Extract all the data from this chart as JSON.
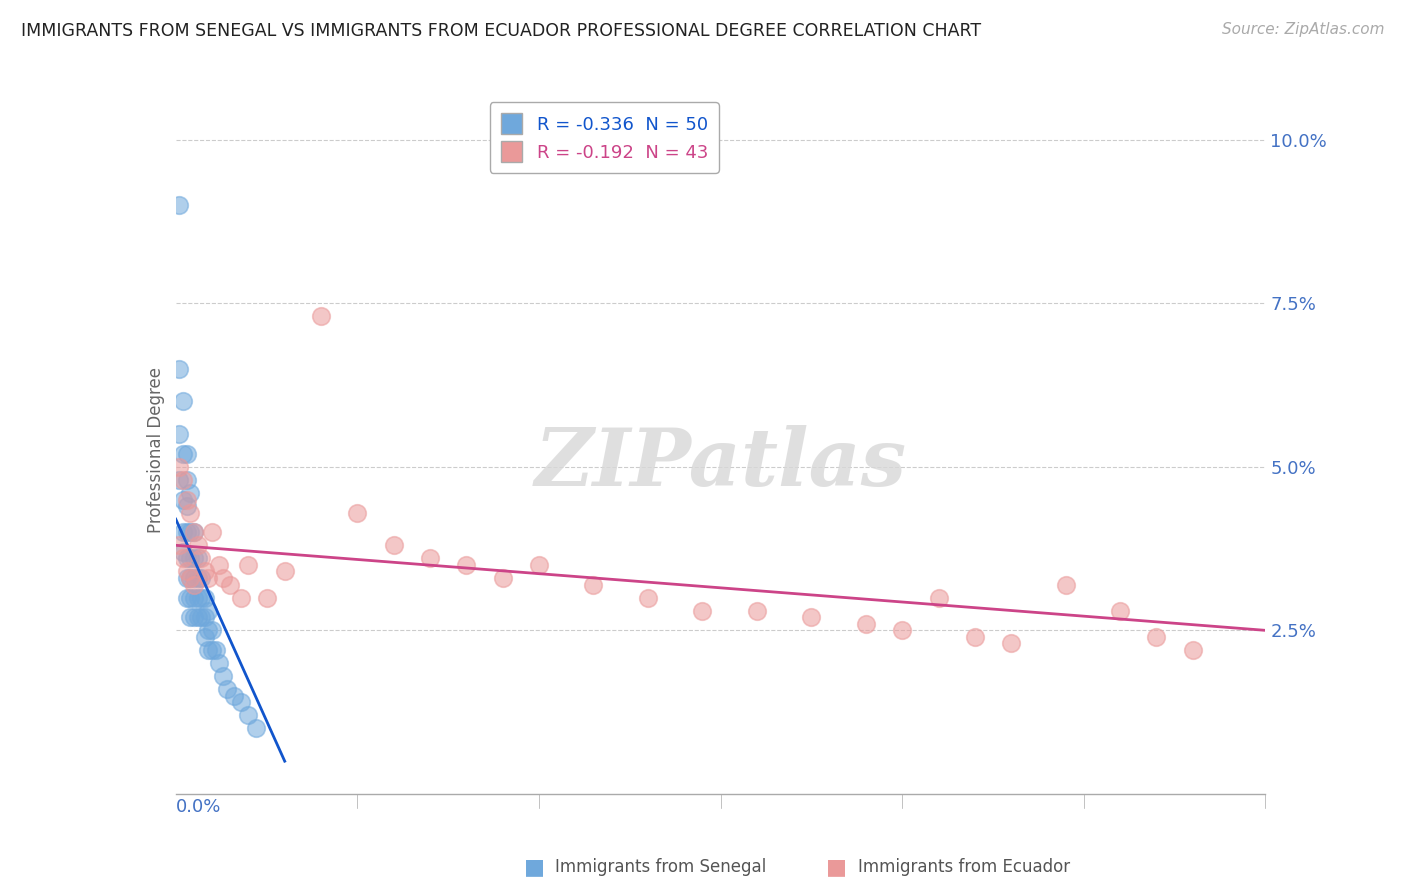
{
  "title": "IMMIGRANTS FROM SENEGAL VS IMMIGRANTS FROM ECUADOR PROFESSIONAL DEGREE CORRELATION CHART",
  "source": "Source: ZipAtlas.com",
  "ylabel": "Professional Degree",
  "xlim": [
    0.0,
    0.3
  ],
  "ylim": [
    0.0,
    0.105
  ],
  "ytick_vals": [
    0.0,
    0.025,
    0.05,
    0.075,
    0.1
  ],
  "ytick_labels": [
    "",
    "2.5%",
    "5.0%",
    "7.5%",
    "10.0%"
  ],
  "senegal_R": -0.336,
  "senegal_N": 50,
  "ecuador_R": -0.192,
  "ecuador_N": 43,
  "senegal_color": "#6fa8dc",
  "ecuador_color": "#ea9999",
  "senegal_line_color": "#1155cc",
  "ecuador_line_color": "#cc4488",
  "senegal_line_x": [
    0.0,
    0.03
  ],
  "senegal_line_y": [
    0.042,
    0.005
  ],
  "ecuador_line_x": [
    0.0,
    0.3
  ],
  "ecuador_line_y": [
    0.038,
    0.025
  ],
  "background_color": "#ffffff",
  "watermark_text": "ZIPatlas",
  "senegal_x": [
    0.001,
    0.001,
    0.001,
    0.001,
    0.002,
    0.002,
    0.002,
    0.002,
    0.002,
    0.003,
    0.003,
    0.003,
    0.003,
    0.003,
    0.003,
    0.003,
    0.004,
    0.004,
    0.004,
    0.004,
    0.004,
    0.004,
    0.005,
    0.005,
    0.005,
    0.005,
    0.005,
    0.006,
    0.006,
    0.006,
    0.006,
    0.007,
    0.007,
    0.007,
    0.008,
    0.008,
    0.008,
    0.009,
    0.009,
    0.009,
    0.01,
    0.01,
    0.011,
    0.012,
    0.013,
    0.014,
    0.016,
    0.018,
    0.02,
    0.022
  ],
  "senegal_y": [
    0.09,
    0.065,
    0.055,
    0.048,
    0.06,
    0.052,
    0.045,
    0.04,
    0.037,
    0.052,
    0.048,
    0.044,
    0.04,
    0.036,
    0.033,
    0.03,
    0.046,
    0.04,
    0.036,
    0.033,
    0.03,
    0.027,
    0.04,
    0.036,
    0.033,
    0.03,
    0.027,
    0.036,
    0.033,
    0.03,
    0.027,
    0.033,
    0.03,
    0.027,
    0.03,
    0.027,
    0.024,
    0.028,
    0.025,
    0.022,
    0.025,
    0.022,
    0.022,
    0.02,
    0.018,
    0.016,
    0.015,
    0.014,
    0.012,
    0.01
  ],
  "ecuador_x": [
    0.001,
    0.001,
    0.002,
    0.002,
    0.003,
    0.003,
    0.004,
    0.004,
    0.005,
    0.005,
    0.006,
    0.007,
    0.008,
    0.009,
    0.01,
    0.012,
    0.013,
    0.015,
    0.018,
    0.02,
    0.025,
    0.03,
    0.04,
    0.05,
    0.06,
    0.07,
    0.08,
    0.09,
    0.1,
    0.115,
    0.13,
    0.145,
    0.16,
    0.175,
    0.19,
    0.2,
    0.21,
    0.22,
    0.23,
    0.245,
    0.26,
    0.27,
    0.28
  ],
  "ecuador_y": [
    0.05,
    0.038,
    0.048,
    0.036,
    0.045,
    0.034,
    0.043,
    0.033,
    0.04,
    0.032,
    0.038,
    0.036,
    0.034,
    0.033,
    0.04,
    0.035,
    0.033,
    0.032,
    0.03,
    0.035,
    0.03,
    0.034,
    0.073,
    0.043,
    0.038,
    0.036,
    0.035,
    0.033,
    0.035,
    0.032,
    0.03,
    0.028,
    0.028,
    0.027,
    0.026,
    0.025,
    0.03,
    0.024,
    0.023,
    0.032,
    0.028,
    0.024,
    0.022
  ]
}
